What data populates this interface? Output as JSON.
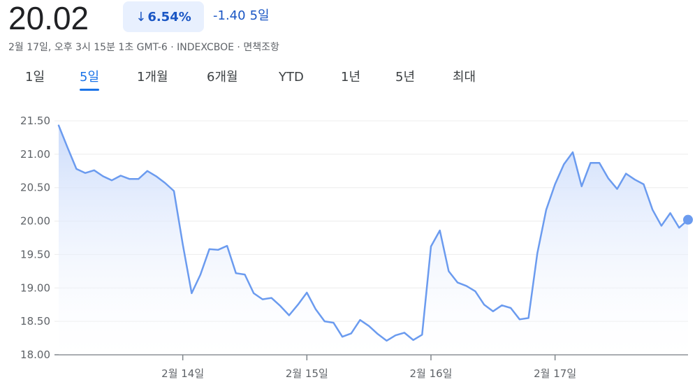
{
  "quote": {
    "price": "20.02",
    "change_pct": "6.54%",
    "change_abs": "-1.40",
    "period_label": "5일",
    "meta": "2월 17일, 오후 3시 15분 1초 GMT-6 · INDEXCBOE · 면책조항"
  },
  "colors": {
    "line": "#6b9bef",
    "accent": "#1a73e8",
    "change": "#1a56c4",
    "change_bg": "#e8f0fe"
  },
  "icons": {
    "change_direction": "arrow-down-icon"
  },
  "tabs": [
    {
      "label": "1일",
      "active": false
    },
    {
      "label": "5일",
      "active": true
    },
    {
      "label": "1개월",
      "active": false
    },
    {
      "label": "6개월",
      "active": false
    },
    {
      "label": "YTD",
      "active": false
    },
    {
      "label": "1년",
      "active": false
    },
    {
      "label": "5년",
      "active": false
    },
    {
      "label": "최대",
      "active": false
    }
  ],
  "chart_data": {
    "type": "area",
    "ylim": [
      18.0,
      21.5
    ],
    "yticks": [
      "21.50",
      "21.00",
      "20.50",
      "20.00",
      "19.50",
      "19.00",
      "18.50",
      "18.00"
    ],
    "xticks": [
      {
        "label": "2월 14일",
        "index": 14
      },
      {
        "label": "2월 15일",
        "index": 28
      },
      {
        "label": "2월 16일",
        "index": 42
      },
      {
        "label": "2월 17일",
        "index": 56
      }
    ],
    "grid": true,
    "series": [
      {
        "values": [
          21.43,
          21.1,
          20.78,
          20.72,
          20.76,
          20.67,
          20.61,
          20.68,
          20.63,
          20.63,
          20.75,
          20.67,
          20.57,
          20.45,
          19.65,
          18.92,
          19.2,
          19.58,
          19.57,
          19.63,
          19.22,
          19.2,
          18.92,
          18.83,
          18.85,
          18.73,
          18.59,
          18.75,
          18.93,
          18.68,
          18.5,
          18.48,
          18.27,
          18.32,
          18.52,
          18.43,
          18.31,
          18.21,
          18.29,
          18.33,
          18.22,
          18.3,
          19.62,
          19.86,
          19.25,
          19.08,
          19.03,
          18.95,
          18.75,
          18.65,
          18.74,
          18.7,
          18.53,
          18.55,
          19.52,
          20.17,
          20.55,
          20.85,
          21.03,
          20.52,
          20.87,
          20.87,
          20.64,
          20.48,
          20.71,
          20.62,
          20.55,
          20.17,
          19.93,
          20.12,
          19.9,
          20.02
        ]
      }
    ]
  }
}
